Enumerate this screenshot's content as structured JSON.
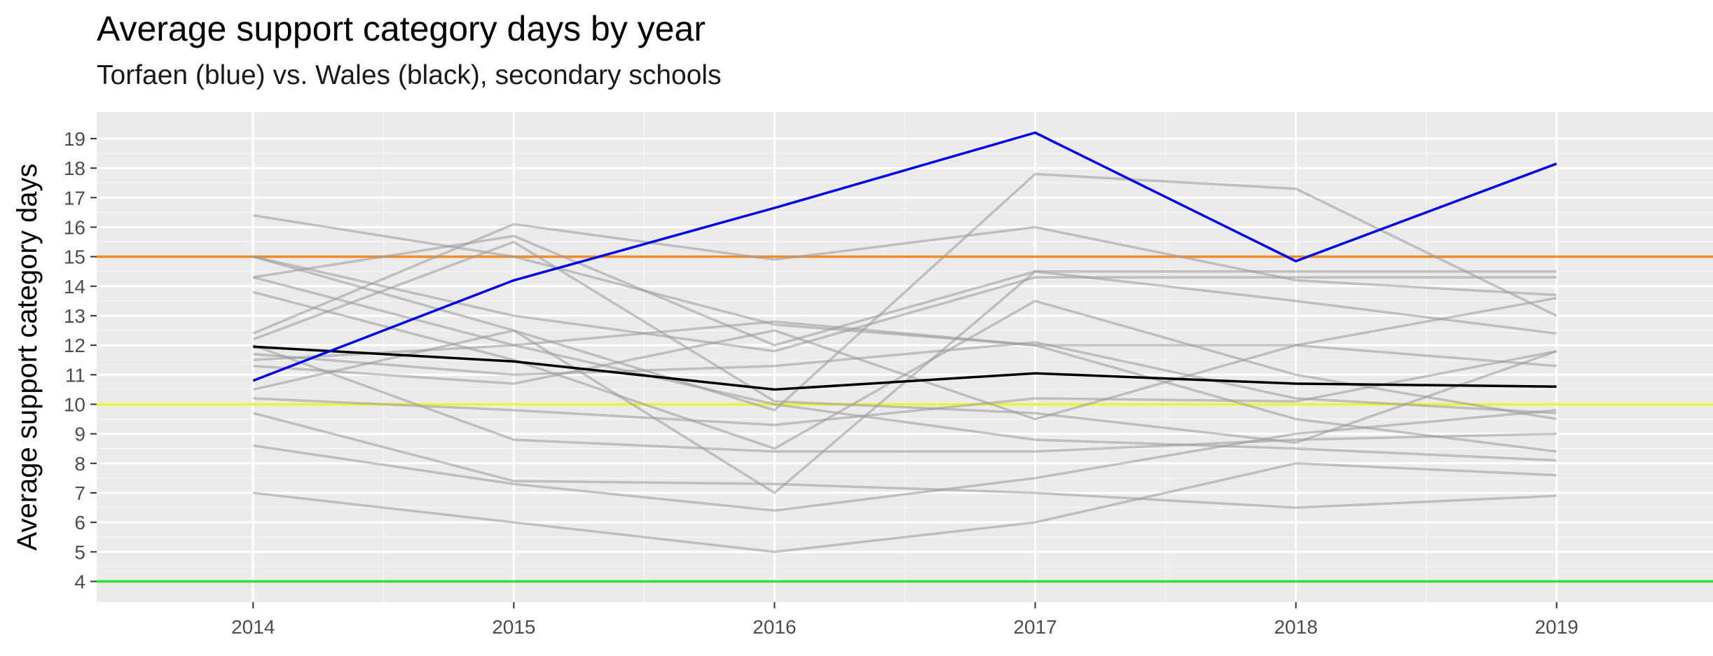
{
  "chart_data": {
    "type": "line",
    "title": "Average support category days by year",
    "subtitle": "Torfaen (blue) vs. Wales (black), secondary schools",
    "xlabel": "",
    "ylabel": "Average support category days",
    "x": [
      2014,
      2015,
      2016,
      2017,
      2018,
      2019
    ],
    "xlim": [
      2013.4,
      2019.6
    ],
    "ylim": [
      3.3,
      19.9
    ],
    "yticks": [
      4,
      5,
      6,
      7,
      8,
      9,
      10,
      11,
      12,
      13,
      14,
      15,
      16,
      17,
      18,
      19
    ],
    "grid": true,
    "legend": "none",
    "reference_lines": [
      {
        "y": 15,
        "color": "#F28C28"
      },
      {
        "y": 10,
        "color": "#F2F231"
      },
      {
        "y": 4,
        "color": "#32E032"
      }
    ],
    "background_series": [
      {
        "values": [
          16.4,
          15.0,
          12.7,
          12.0,
          9.5,
          8.4
        ],
        "color": "#999999"
      },
      {
        "values": [
          15.0,
          12.5,
          9.8,
          17.8,
          17.3,
          13.0
        ],
        "color": "#999999"
      },
      {
        "values": [
          15.0,
          13.0,
          11.8,
          14.3,
          14.3,
          14.3
        ],
        "color": "#999999"
      },
      {
        "values": [
          14.3,
          15.7,
          12.0,
          14.5,
          14.5,
          14.5
        ],
        "color": "#999999"
      },
      {
        "values": [
          14.3,
          12.0,
          10.0,
          8.8,
          8.5,
          8.1
        ],
        "color": "#999999"
      },
      {
        "values": [
          13.8,
          11.5,
          8.5,
          13.5,
          11.0,
          9.5
        ],
        "color": "#999999"
      },
      {
        "values": [
          12.4,
          16.1,
          14.9,
          16.0,
          14.2,
          13.7
        ],
        "color": "#999999"
      },
      {
        "values": [
          12.2,
          15.5,
          10.1,
          9.7,
          8.7,
          11.8
        ],
        "color": "#999999"
      },
      {
        "values": [
          11.7,
          11.0,
          11.3,
          12.1,
          10.2,
          9.7
        ],
        "color": "#999999"
      },
      {
        "values": [
          11.5,
          12.0,
          12.8,
          12.0,
          12.0,
          11.3
        ],
        "color": "#999999"
      },
      {
        "values": [
          11.3,
          10.7,
          12.5,
          9.5,
          12.0,
          13.6
        ],
        "color": "#999999"
      },
      {
        "values": [
          10.5,
          12.5,
          7.0,
          14.5,
          13.5,
          12.4
        ],
        "color": "#999999"
      },
      {
        "values": [
          10.2,
          9.8,
          9.3,
          10.2,
          10.1,
          11.8
        ],
        "color": "#999999"
      },
      {
        "values": [
          9.7,
          7.4,
          7.3,
          7.0,
          6.5,
          6.9
        ],
        "color": "#999999"
      },
      {
        "values": [
          8.6,
          7.3,
          6.4,
          7.5,
          9.0,
          9.8
        ],
        "color": "#999999"
      },
      {
        "values": [
          7.0,
          6.0,
          5.0,
          6.0,
          8.0,
          7.6
        ],
        "color": "#999999"
      },
      {
        "values": [
          12.0,
          8.8,
          8.4,
          8.4,
          8.8,
          9.0
        ],
        "color": "#999999"
      }
    ],
    "series": [
      {
        "values": [
          11.95,
          11.45,
          10.5,
          11.05,
          10.7,
          10.6
        ],
        "color": "#000000"
      },
      {
        "values": [
          10.8,
          14.2,
          16.65,
          19.2,
          14.85,
          18.15
        ],
        "color": "#0000E6"
      }
    ]
  }
}
